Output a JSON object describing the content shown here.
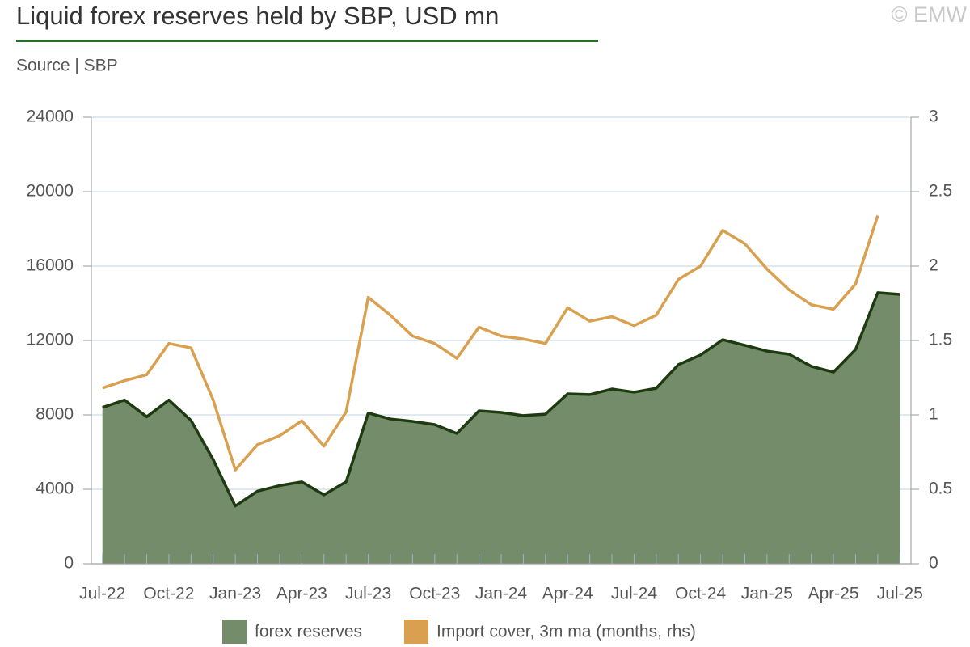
{
  "chart_data": {
    "type": "area-line",
    "title": "Liquid forex reserves held by SBP, USD mn",
    "subtitle": "Source | SBP",
    "credit": "© EMW",
    "categories": [
      "Jul-22",
      null,
      null,
      "Oct-22",
      null,
      null,
      "Jan-23",
      null,
      null,
      "Apr-23",
      null,
      null,
      "Jul-23",
      null,
      null,
      "Oct-23",
      null,
      null,
      "Jan-24",
      null,
      null,
      "Apr-24",
      null,
      null,
      "Jul-24",
      null,
      null,
      "Oct-24",
      null,
      null,
      "Jan-25",
      null,
      null,
      "Apr-25",
      null,
      null,
      "Jul-25"
    ],
    "series": [
      {
        "name": "forex reserves",
        "color": "#748c6a",
        "line_color": "#1e3a10",
        "axis": "y",
        "values": [
          8400,
          8800,
          7900,
          8800,
          7700,
          5600,
          3100,
          3900,
          4200,
          4400,
          3700,
          4400,
          8100,
          7780,
          7650,
          7480,
          7000,
          8220,
          8130,
          7960,
          8040,
          9130,
          9090,
          9390,
          9220,
          9430,
          10700,
          11220,
          12040,
          11740,
          11430,
          11260,
          10610,
          10300,
          11520,
          14570,
          14480
        ]
      },
      {
        "name": "Import cover, 3m ma (months, rhs)",
        "color": "#d9a050",
        "axis": "y2",
        "values": [
          1.18,
          1.23,
          1.27,
          1.48,
          1.45,
          1.1,
          0.63,
          0.8,
          0.86,
          0.96,
          0.79,
          1.02,
          1.79,
          1.67,
          1.53,
          1.48,
          1.38,
          1.59,
          1.53,
          1.51,
          1.48,
          1.72,
          1.63,
          1.66,
          1.6,
          1.67,
          1.91,
          2.0,
          2.24,
          2.15,
          1.98,
          1.84,
          1.74,
          1.71,
          1.88,
          2.34,
          null
        ]
      }
    ],
    "ylim": [
      0,
      24000
    ],
    "yticks": [
      0,
      4000,
      8000,
      12000,
      16000,
      20000,
      24000
    ],
    "y2lim": [
      0,
      3
    ],
    "y2ticks": [
      0,
      0.5,
      1,
      1.5,
      2,
      2.5,
      3
    ],
    "grid": true
  }
}
